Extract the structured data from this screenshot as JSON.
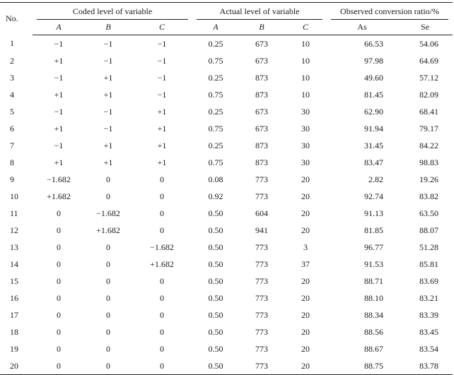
{
  "headers": {
    "no": "No.",
    "coded_group": "Coded level of variable",
    "actual_group": "Actual level of variable",
    "observed_group": "Observed conversion ratio/%",
    "coded_cols": [
      "A",
      "B",
      "C"
    ],
    "actual_cols": [
      "A",
      "B",
      "C"
    ],
    "observed_cols": [
      "As",
      "Se"
    ]
  },
  "rows": [
    [
      "1",
      "−1",
      "−1",
      "−1",
      "0.25",
      "673",
      "10",
      "66.53",
      "54.06"
    ],
    [
      "2",
      "+1",
      "−1",
      "−1",
      "0.75",
      "673",
      "10",
      "97.98",
      "64.69"
    ],
    [
      "3",
      "−1",
      "+1",
      "−1",
      "0.25",
      "873",
      "10",
      "49.60",
      "57.12"
    ],
    [
      "4",
      "+1",
      "+1",
      "−1",
      "0.75",
      "873",
      "10",
      "81.45",
      "82.09"
    ],
    [
      "5",
      "−1",
      "−1",
      "+1",
      "0.25",
      "673",
      "30",
      "62.90",
      "68.41"
    ],
    [
      "6",
      "+1",
      "−1",
      "+1",
      "0.75",
      "673",
      "30",
      "91.94",
      "79.17"
    ],
    [
      "7",
      "−1",
      "+1",
      "+1",
      "0.25",
      "873",
      "30",
      "31.45",
      "84.22"
    ],
    [
      "8",
      "+1",
      "+1",
      "+1",
      "0.75",
      "873",
      "30",
      "83.47",
      "98.83"
    ],
    [
      "9",
      "−1.682",
      "0",
      "0",
      "0.08",
      "773",
      "20",
      "2.82",
      "19.26"
    ],
    [
      "10",
      "+1.682",
      "0",
      "0",
      "0.92",
      "773",
      "20",
      "92.74",
      "83.82"
    ],
    [
      "11",
      "0",
      "−1.682",
      "0",
      "0.50",
      "604",
      "20",
      "91.13",
      "63.50"
    ],
    [
      "12",
      "0",
      "+1.682",
      "0",
      "0.50",
      "941",
      "20",
      "81.85",
      "88.07"
    ],
    [
      "13",
      "0",
      "0",
      "−1.682",
      "0.50",
      "773",
      "3",
      "96.77",
      "51.28"
    ],
    [
      "14",
      "0",
      "0",
      "+1.682",
      "0.50",
      "773",
      "37",
      "91.53",
      "85.81"
    ],
    [
      "15",
      "0",
      "0",
      "0",
      "0.50",
      "773",
      "20",
      "88.71",
      "83.69"
    ],
    [
      "16",
      "0",
      "0",
      "0",
      "0.50",
      "773",
      "20",
      "88.10",
      "83.21"
    ],
    [
      "17",
      "0",
      "0",
      "0",
      "0.50",
      "773",
      "20",
      "88.34",
      "83.39"
    ],
    [
      "18",
      "0",
      "0",
      "0",
      "0.50",
      "773",
      "20",
      "88.56",
      "83.45"
    ],
    [
      "19",
      "0",
      "0",
      "0",
      "0.50",
      "773",
      "20",
      "88.67",
      "83.54"
    ],
    [
      "20",
      "0",
      "0",
      "0",
      "0.50",
      "773",
      "20",
      "88.75",
      "83.78"
    ]
  ]
}
